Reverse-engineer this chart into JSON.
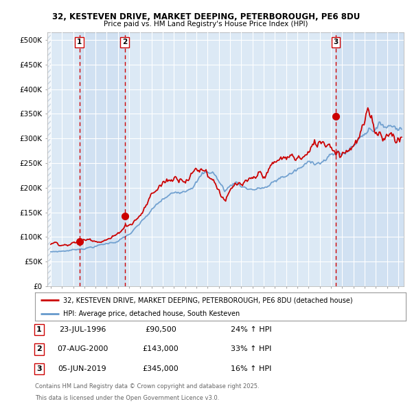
{
  "title1": "32, KESTEVEN DRIVE, MARKET DEEPING, PETERBOROUGH, PE6 8DU",
  "title2": "Price paid vs. HM Land Registry's House Price Index (HPI)",
  "ylabel_ticks": [
    "£0",
    "£50K",
    "£100K",
    "£150K",
    "£200K",
    "£250K",
    "£300K",
    "£350K",
    "£400K",
    "£450K",
    "£500K"
  ],
  "ytick_values": [
    0,
    50000,
    100000,
    150000,
    200000,
    250000,
    300000,
    350000,
    400000,
    450000,
    500000
  ],
  "ylim": [
    0,
    515000
  ],
  "xlim_start": 1993.7,
  "xlim_end": 2025.5,
  "legend_line1": "32, KESTEVEN DRIVE, MARKET DEEPING, PETERBOROUGH, PE6 8DU (detached house)",
  "legend_line2": "HPI: Average price, detached house, South Kesteven",
  "sale1_date": 1996.55,
  "sale1_price": 90500,
  "sale1_label": "1",
  "sale2_date": 2000.6,
  "sale2_price": 143000,
  "sale2_label": "2",
  "sale3_date": 2019.43,
  "sale3_price": 345000,
  "sale3_label": "3",
  "table_data": [
    [
      "1",
      "23-JUL-1996",
      "£90,500",
      "24% ↑ HPI"
    ],
    [
      "2",
      "07-AUG-2000",
      "£143,000",
      "33% ↑ HPI"
    ],
    [
      "3",
      "05-JUN-2019",
      "£345,000",
      "16% ↑ HPI"
    ]
  ],
  "footnote1": "Contains HM Land Registry data © Crown copyright and database right 2025.",
  "footnote2": "This data is licensed under the Open Government Licence v3.0.",
  "bg_color": "#dce9f5",
  "hatch_color": "#b8c8d8",
  "red_line_color": "#cc0000",
  "blue_line_color": "#6699cc",
  "grid_color": "#ffffff",
  "dashed_red": "#cc0000",
  "sale_dot_color": "#cc0000",
  "between_sale_bg": "#c8daf0"
}
